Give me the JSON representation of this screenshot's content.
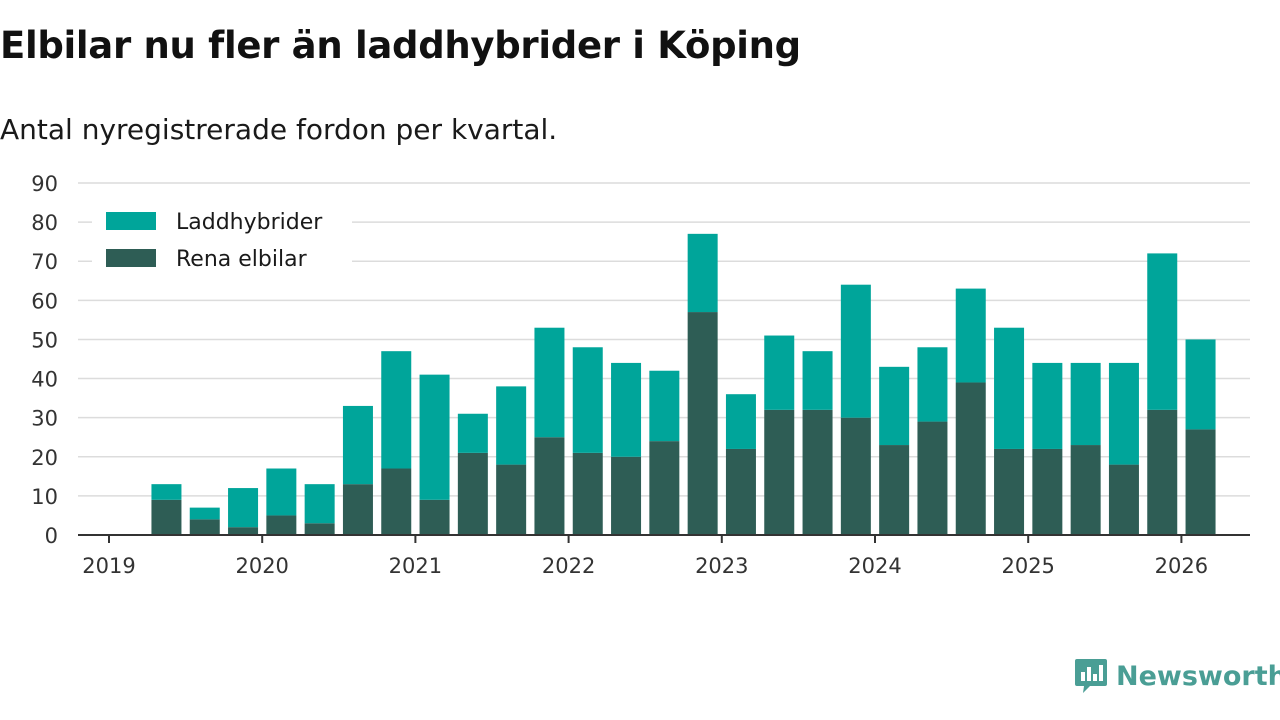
{
  "title": "Elbilar nu fler än laddhybrider i Köping",
  "subtitle": "Antal nyregistrerade fordon per kvartal.",
  "brand": {
    "name": "Newsworthy",
    "icon": "newsworthy-logo-icon"
  },
  "colors": {
    "laddhybrider": "#00a59a",
    "rena_elbilar": "#2e5d55",
    "grid": "#dcdcdc",
    "axis": "#333333",
    "brand": "#4a9e95"
  },
  "chart_data": {
    "type": "bar",
    "stacked": true,
    "title": "Elbilar nu fler än laddhybrider i Köping",
    "subtitle": "Antal nyregistrerade fordon per kvartal.",
    "xlabel": "",
    "ylabel": "",
    "ylim": [
      0,
      90
    ],
    "yticks": [
      "0",
      "10",
      "20",
      "30",
      "40",
      "50",
      "60",
      "70",
      "80",
      "90"
    ],
    "xticks": [
      "2019",
      "2020",
      "2021",
      "2022",
      "2023",
      "2024",
      "2025",
      "2026"
    ],
    "categories": [
      "2019 Q2",
      "2019 Q3",
      "2019 Q4",
      "2020 Q1",
      "2020 Q2",
      "2020 Q3",
      "2020 Q4",
      "2021 Q1",
      "2021 Q2",
      "2021 Q3",
      "2021 Q4",
      "2022 Q1",
      "2022 Q2",
      "2022 Q3",
      "2022 Q4",
      "2023 Q1",
      "2023 Q2",
      "2023 Q3",
      "2023 Q4",
      "2024 Q1",
      "2024 Q2",
      "2024 Q3",
      "2024 Q4",
      "2025 Q1",
      "2025 Q2",
      "2025 Q3",
      "2025 Q4",
      "2026 Q1"
    ],
    "series": [
      {
        "name": "Rena elbilar",
        "color": "#2e5d55",
        "values": [
          9,
          4,
          2,
          5,
          3,
          13,
          17,
          9,
          21,
          18,
          25,
          21,
          20,
          24,
          57,
          22,
          32,
          32,
          30,
          23,
          29,
          39,
          22,
          22,
          23,
          18,
          32,
          27
        ]
      },
      {
        "name": "Laddhybrider",
        "color": "#00a59a",
        "values": [
          4,
          3,
          10,
          12,
          10,
          20,
          30,
          32,
          10,
          20,
          28,
          27,
          24,
          18,
          20,
          14,
          19,
          15,
          34,
          20,
          19,
          24,
          31,
          22,
          21,
          26,
          40,
          23
        ]
      }
    ],
    "legend": [
      "Laddhybrider",
      "Rena elbilar"
    ],
    "legend_position": "top-left",
    "grid": true
  }
}
